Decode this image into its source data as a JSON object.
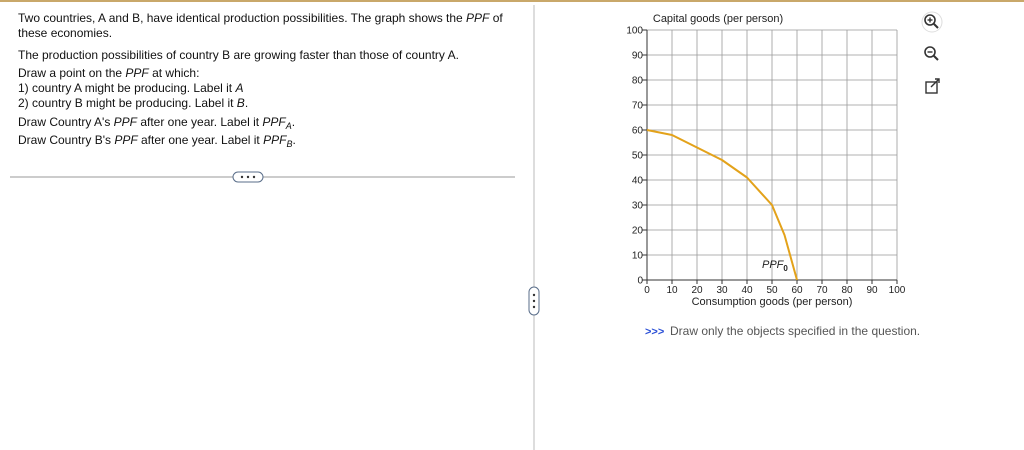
{
  "question": {
    "line1": [
      "Two countries, A and B, have identical production possibilities. The graph shows the ",
      "PPF",
      " of"
    ],
    "line2": "these economies.",
    "line3": "The production possibilities of country B are growing faster than those of country A.",
    "line4": [
      "Draw a point on the ",
      "PPF",
      " at which:"
    ],
    "line5": [
      "1) country A might be producing. Label it ",
      "A"
    ],
    "line6": [
      "2) country B might be producing. Label it ",
      "B",
      "."
    ],
    "line7": [
      "Draw Country A's ",
      "PPF",
      " after one year. Label it ",
      "PPF",
      "A",
      "."
    ],
    "line8": [
      "Draw Country B's ",
      "PPF",
      " after one year. Label it ",
      "PPF",
      "B",
      "."
    ]
  },
  "chart_data": {
    "type": "line",
    "y_label": "Capital goods (per person)",
    "x_label": "Consumption goods (per person)",
    "x": [
      0,
      10,
      20,
      30,
      40,
      50,
      55,
      60
    ],
    "series": [
      {
        "name": "PPF",
        "name_subscript": "0",
        "color": "#e3a21a",
        "values": [
          60,
          58,
          53,
          48,
          41,
          30,
          18,
          0
        ]
      }
    ],
    "xlim": [
      0,
      100
    ],
    "ylim": [
      0,
      100
    ],
    "xticks": [
      0,
      10,
      20,
      30,
      40,
      50,
      60,
      70,
      80,
      90,
      100
    ],
    "yticks": [
      0,
      10,
      20,
      30,
      40,
      50,
      60,
      70,
      80,
      90,
      100
    ],
    "grid": true
  },
  "note": {
    "prefix": ">>>",
    "text": "Draw only the objects specified in the question."
  }
}
